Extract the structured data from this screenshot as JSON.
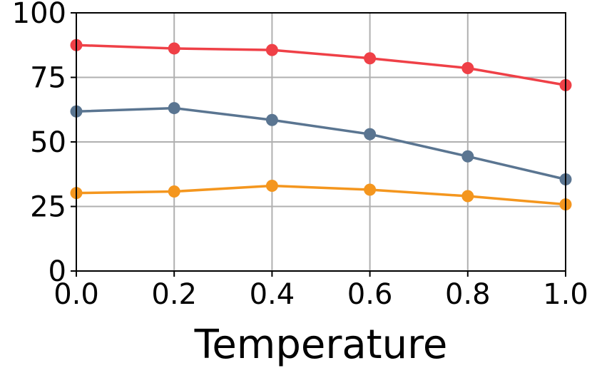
{
  "chart_data": {
    "type": "line",
    "title": "",
    "xlabel": "Temperature",
    "ylabel": "",
    "x": [
      0.0,
      0.2,
      0.4,
      0.6,
      0.8,
      1.0
    ],
    "xlim": [
      0.0,
      1.0
    ],
    "ylim": [
      0,
      100
    ],
    "x_ticks": [
      "0.0",
      "0.2",
      "0.4",
      "0.6",
      "0.8",
      "1.0"
    ],
    "y_ticks": [
      "0",
      "25",
      "50",
      "75",
      "100"
    ],
    "grid": true,
    "legend": "none",
    "series": [
      {
        "color": "#ef4047",
        "values": [
          87.5,
          86.2,
          85.6,
          82.4,
          78.6,
          72.0
        ]
      },
      {
        "color": "#5a7591",
        "values": [
          61.8,
          63.1,
          58.5,
          53.0,
          44.4,
          35.5
        ]
      },
      {
        "color": "#f4961e",
        "values": [
          30.2,
          30.8,
          33.0,
          31.5,
          29.0,
          25.8
        ]
      }
    ]
  }
}
